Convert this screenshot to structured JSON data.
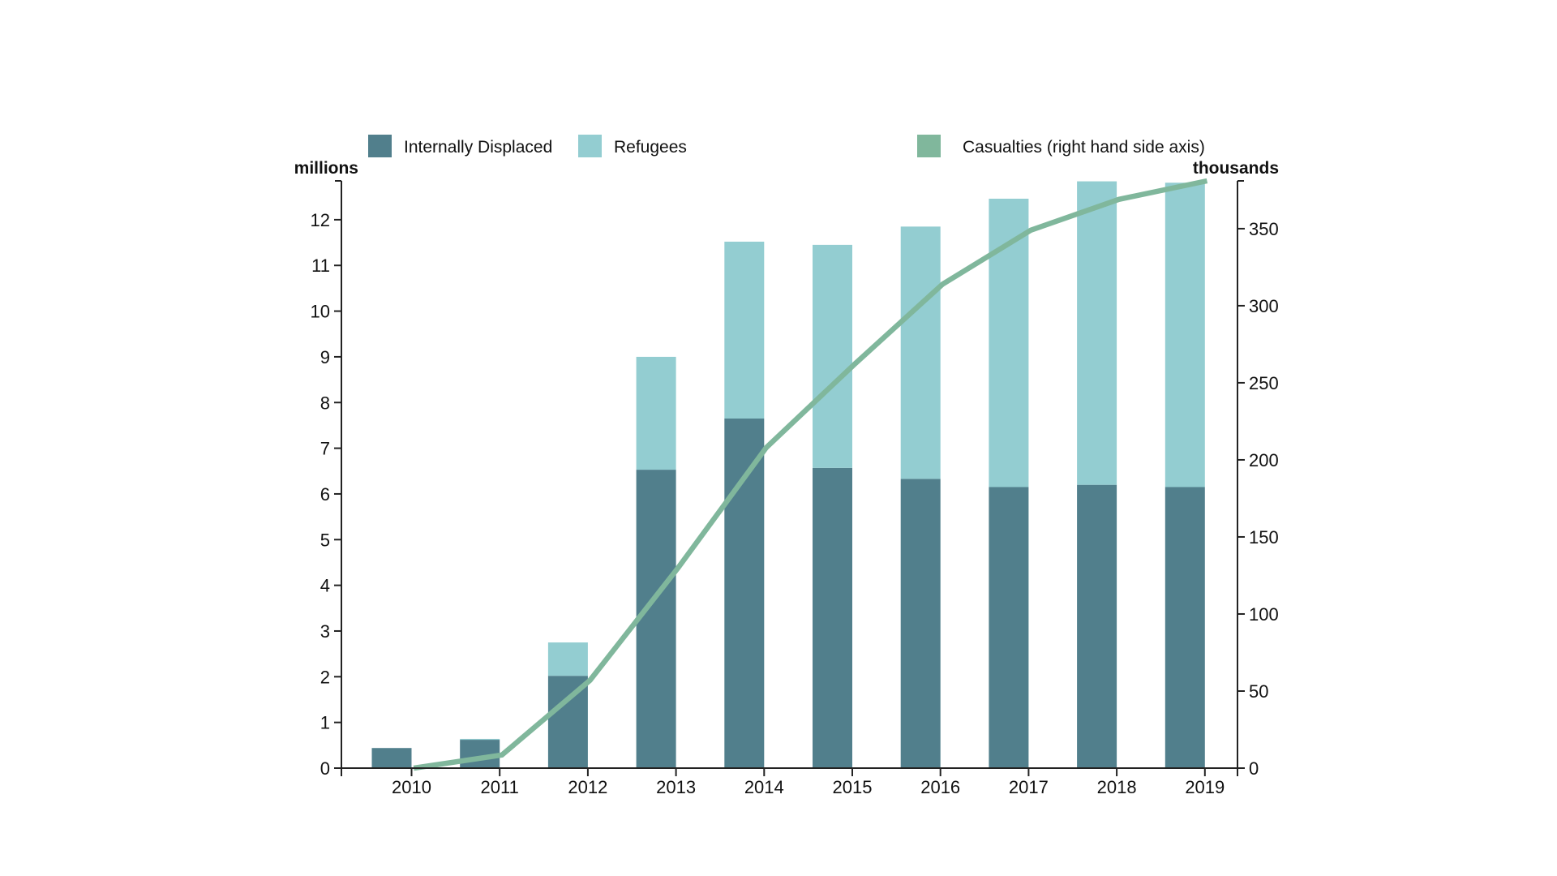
{
  "chart_data": {
    "type": "bar",
    "stacked": true,
    "title": "",
    "categories": [
      "2010",
      "2011",
      "2012",
      "2013",
      "2014",
      "2015",
      "2016",
      "2017",
      "2018",
      "2019"
    ],
    "series": [
      {
        "name": "Internally Displaced",
        "axis": "left",
        "type": "bar",
        "color": "#517F8C",
        "values": [
          0.44,
          0.62,
          2.02,
          6.53,
          7.65,
          6.57,
          6.33,
          6.15,
          6.2,
          6.15
        ]
      },
      {
        "name": "Refugees",
        "axis": "left",
        "type": "bar",
        "color": "#93CDD1",
        "values": [
          0.0,
          0.02,
          0.73,
          2.47,
          3.87,
          4.88,
          5.52,
          6.31,
          6.64,
          6.66
        ]
      },
      {
        "name": "Casualties (right hand side axis)",
        "axis": "right",
        "type": "line",
        "color": "#80B79C",
        "x_offset_years": 0.25,
        "values": [
          0,
          8.5,
          57,
          130,
          208,
          262,
          314,
          349,
          369,
          381
        ]
      }
    ],
    "left_axis": {
      "label": "millions",
      "ylim": [
        0,
        12.85
      ],
      "ticks": [
        0,
        1,
        2,
        3,
        4,
        5,
        6,
        7,
        8,
        9,
        10,
        11,
        12
      ]
    },
    "right_axis": {
      "label": "thousands",
      "ylim": [
        0,
        381
      ],
      "ticks": [
        0,
        50,
        100,
        150,
        200,
        250,
        300,
        350
      ]
    },
    "xlabel": "",
    "grid": false,
    "legend": {
      "placement": "top",
      "entries": [
        "Internally Displaced",
        "Refugees",
        "Casualties (right hand side axis)"
      ]
    }
  }
}
